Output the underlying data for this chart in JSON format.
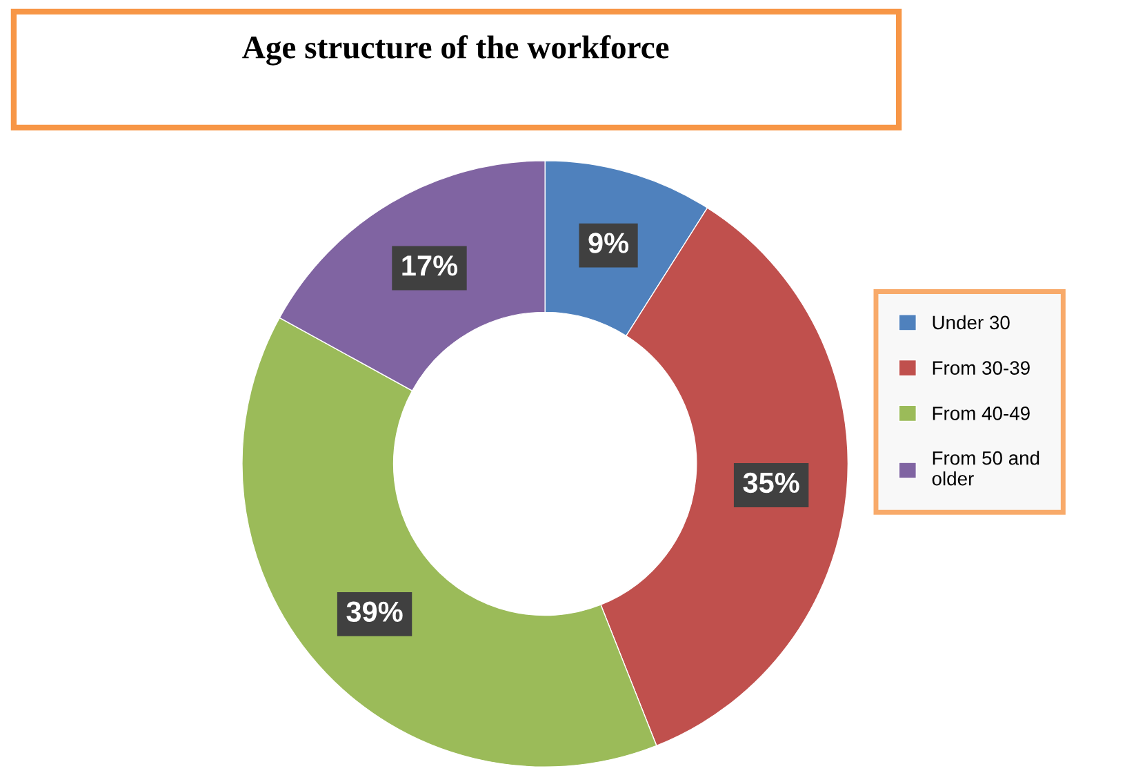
{
  "chart_data": {
    "type": "donut",
    "title": "Age structure of the workforce",
    "categories": [
      "Under 30",
      "From 30-39",
      "From 40-49",
      "From 50 and\nolder"
    ],
    "values": [
      9,
      35,
      39,
      17
    ],
    "value_labels": [
      "9%",
      "35%",
      "39%",
      "17%"
    ],
    "colors": [
      "#4f81bd",
      "#c0504d",
      "#9bbb59",
      "#8064a2"
    ],
    "legend": "right"
  }
}
